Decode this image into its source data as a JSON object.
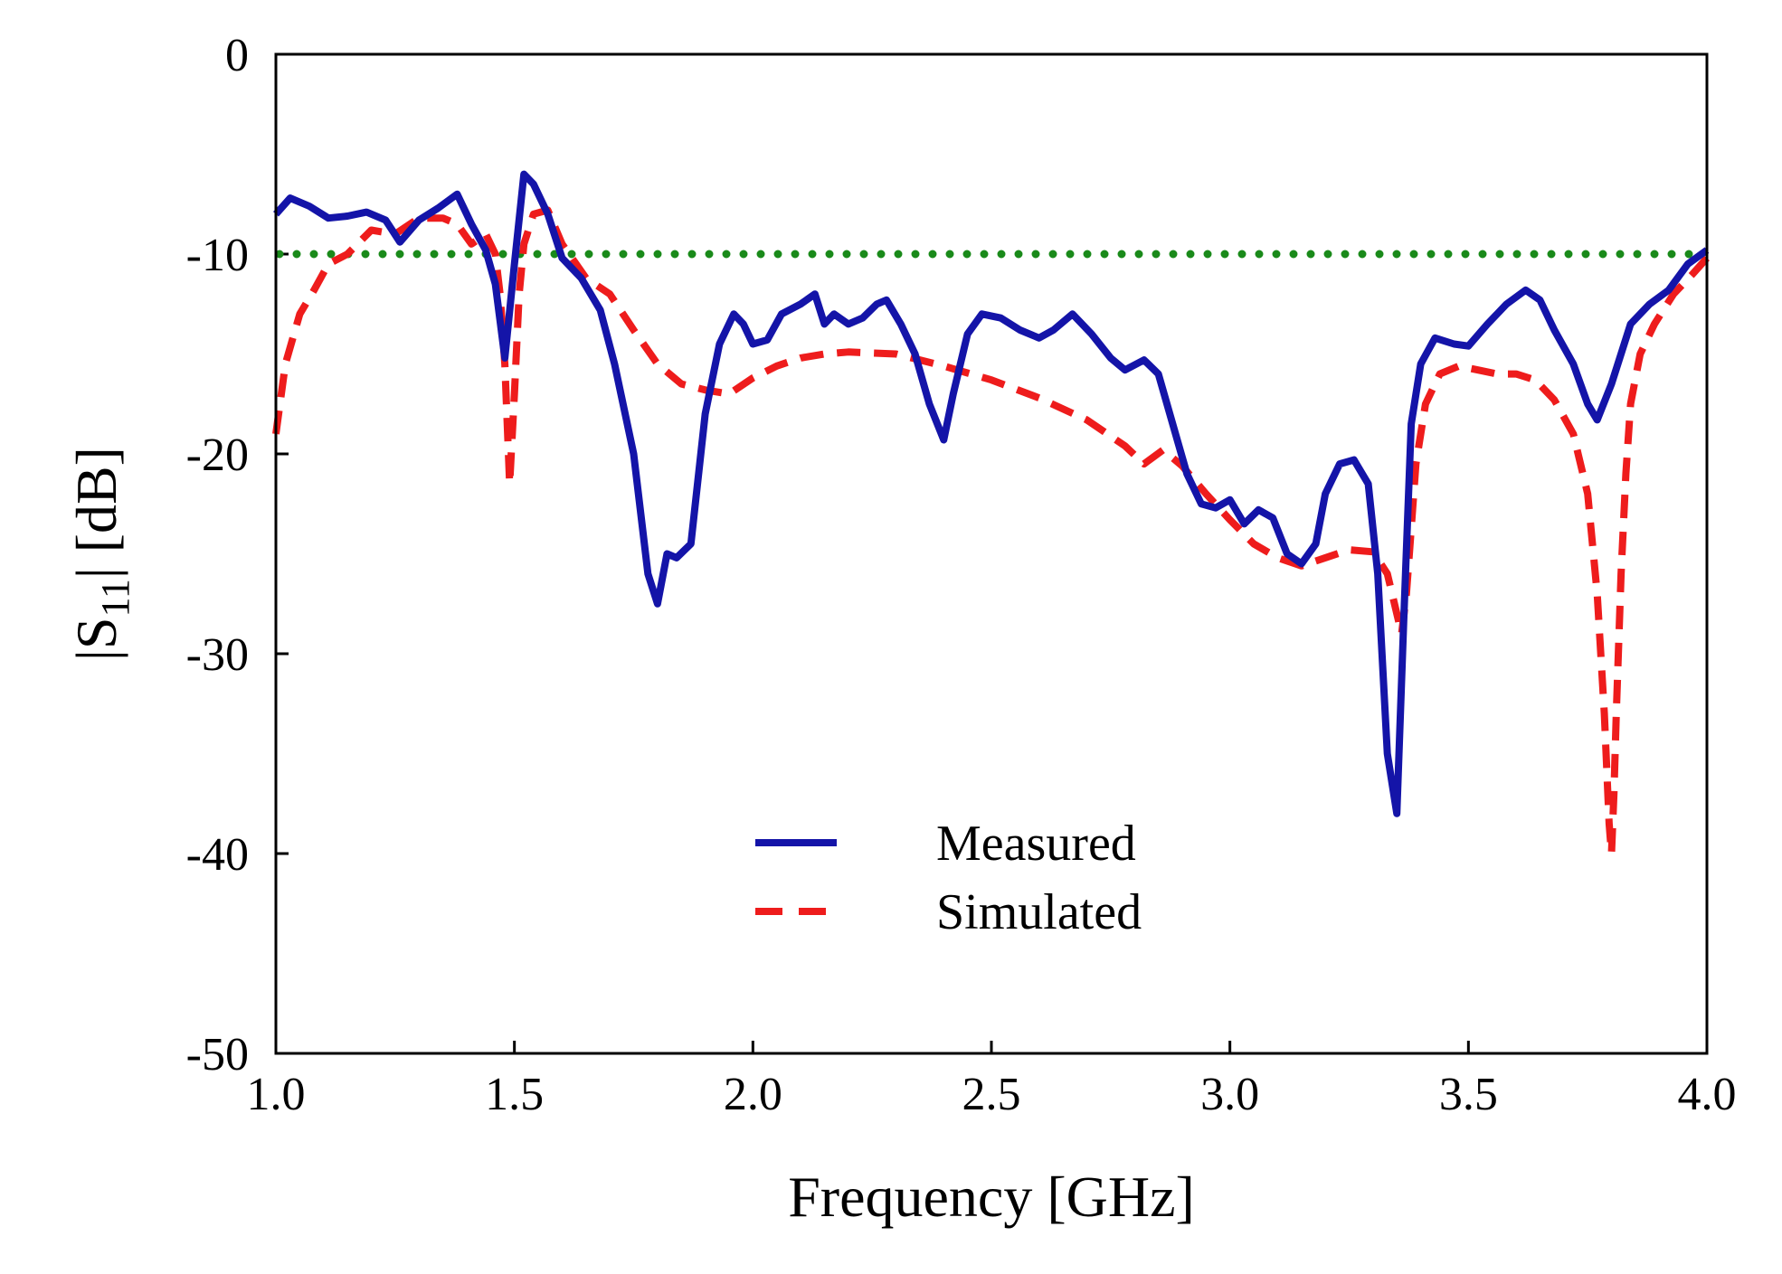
{
  "chart_data": {
    "type": "line",
    "title": "",
    "xlabel": "Frequency [GHz]",
    "ylabel": {
      "prefix": "|S",
      "subscript": "11",
      "suffix": "| [dB]"
    },
    "xlim": [
      1.0,
      4.0
    ],
    "ylim": [
      -50,
      0
    ],
    "x_ticks": [
      "1.0",
      "1.5",
      "2.0",
      "2.5",
      "3.0",
      "3.5",
      "4.0"
    ],
    "y_ticks": [
      "0",
      "-10",
      "-20",
      "-30",
      "-40",
      "-50"
    ],
    "grid": false,
    "legend": "bottom-center",
    "colors": {
      "measured": "#1414a8",
      "simulated": "#ee1c1c",
      "threshold": "#1a8a1a"
    },
    "reference_line": {
      "y": -10,
      "style": "dotted"
    },
    "series": [
      {
        "name": "Measured",
        "style": "solid",
        "x": [
          1.0,
          1.03,
          1.07,
          1.11,
          1.15,
          1.19,
          1.23,
          1.26,
          1.3,
          1.34,
          1.38,
          1.41,
          1.44,
          1.46,
          1.48,
          1.5,
          1.52,
          1.54,
          1.57,
          1.6,
          1.64,
          1.68,
          1.71,
          1.75,
          1.78,
          1.8,
          1.82,
          1.84,
          1.87,
          1.9,
          1.93,
          1.96,
          1.98,
          2.0,
          2.03,
          2.06,
          2.1,
          2.13,
          2.15,
          2.17,
          2.2,
          2.23,
          2.26,
          2.28,
          2.31,
          2.34,
          2.37,
          2.4,
          2.42,
          2.45,
          2.48,
          2.52,
          2.56,
          2.6,
          2.63,
          2.67,
          2.71,
          2.75,
          2.78,
          2.82,
          2.85,
          2.88,
          2.91,
          2.94,
          2.97,
          3.0,
          3.03,
          3.06,
          3.09,
          3.12,
          3.15,
          3.18,
          3.2,
          3.23,
          3.26,
          3.29,
          3.31,
          3.33,
          3.35,
          3.365,
          3.38,
          3.4,
          3.43,
          3.47,
          3.5,
          3.54,
          3.58,
          3.62,
          3.65,
          3.68,
          3.72,
          3.75,
          3.77,
          3.8,
          3.84,
          3.88,
          3.92,
          3.96,
          4.0
        ],
        "y": [
          -8.0,
          -7.2,
          -7.6,
          -8.2,
          -8.1,
          -7.9,
          -8.3,
          -9.4,
          -8.3,
          -7.7,
          -7.0,
          -8.5,
          -9.8,
          -11.5,
          -15.2,
          -10.5,
          -6.0,
          -6.5,
          -8.0,
          -10.2,
          -11.2,
          -12.8,
          -15.5,
          -20.0,
          -26.0,
          -27.5,
          -25.0,
          -25.2,
          -24.5,
          -18.0,
          -14.5,
          -13.0,
          -13.5,
          -14.5,
          -14.3,
          -13.0,
          -12.5,
          -12.0,
          -13.5,
          -13.0,
          -13.5,
          -13.2,
          -12.5,
          -12.3,
          -13.5,
          -15.0,
          -17.5,
          -19.3,
          -17.0,
          -14.0,
          -13.0,
          -13.2,
          -13.8,
          -14.2,
          -13.8,
          -13.0,
          -14.0,
          -15.2,
          -15.8,
          -15.3,
          -16.0,
          -18.5,
          -21.0,
          -22.5,
          -22.7,
          -22.3,
          -23.5,
          -22.8,
          -23.2,
          -25.0,
          -25.5,
          -24.5,
          -22.0,
          -20.5,
          -20.3,
          -21.5,
          -26.0,
          -35.0,
          -38.0,
          -28.0,
          -18.5,
          -15.5,
          -14.2,
          -14.5,
          -14.6,
          -13.5,
          -12.5,
          -11.8,
          -12.3,
          -13.8,
          -15.5,
          -17.5,
          -18.3,
          -16.5,
          -13.5,
          -12.5,
          -11.8,
          -10.5,
          -9.8
        ]
      },
      {
        "name": "Simulated",
        "style": "dashed",
        "x": [
          1.0,
          1.02,
          1.05,
          1.08,
          1.11,
          1.15,
          1.2,
          1.25,
          1.3,
          1.35,
          1.38,
          1.41,
          1.44,
          1.46,
          1.47,
          1.48,
          1.49,
          1.5,
          1.51,
          1.52,
          1.54,
          1.57,
          1.6,
          1.65,
          1.7,
          1.75,
          1.8,
          1.85,
          1.9,
          1.95,
          2.0,
          2.05,
          2.1,
          2.15,
          2.2,
          2.3,
          2.4,
          2.5,
          2.6,
          2.7,
          2.78,
          2.82,
          2.86,
          2.9,
          2.95,
          3.0,
          3.05,
          3.1,
          3.15,
          3.2,
          3.25,
          3.3,
          3.33,
          3.35,
          3.36,
          3.37,
          3.39,
          3.41,
          3.44,
          3.48,
          3.52,
          3.56,
          3.6,
          3.64,
          3.68,
          3.72,
          3.75,
          3.77,
          3.785,
          3.795,
          3.8,
          3.805,
          3.81,
          3.82,
          3.83,
          3.84,
          3.86,
          3.89,
          3.93,
          3.97,
          4.0
        ],
        "y": [
          -19.0,
          -15.5,
          -13.0,
          -11.8,
          -10.5,
          -10.0,
          -8.8,
          -9.0,
          -8.2,
          -8.2,
          -8.5,
          -9.5,
          -9.0,
          -10.0,
          -12.0,
          -15.5,
          -21.5,
          -17.0,
          -12.0,
          -9.5,
          -8.0,
          -7.8,
          -9.5,
          -11.2,
          -12.0,
          -13.8,
          -15.5,
          -16.5,
          -16.8,
          -17.0,
          -16.2,
          -15.6,
          -15.2,
          -15.0,
          -14.9,
          -15.0,
          -15.6,
          -16.3,
          -17.2,
          -18.3,
          -19.6,
          -20.5,
          -19.8,
          -20.6,
          -22.0,
          -23.3,
          -24.5,
          -25.2,
          -25.6,
          -25.2,
          -24.8,
          -24.9,
          -26.0,
          -28.0,
          -29.0,
          -27.0,
          -20.5,
          -17.5,
          -16.0,
          -15.6,
          -15.8,
          -16.0,
          -16.0,
          -16.3,
          -17.3,
          -19.0,
          -22.0,
          -27.0,
          -33.0,
          -38.5,
          -40.0,
          -37.0,
          -33.0,
          -26.0,
          -21.0,
          -17.5,
          -15.0,
          -13.5,
          -12.0,
          -11.0,
          -10.2
        ]
      }
    ]
  }
}
